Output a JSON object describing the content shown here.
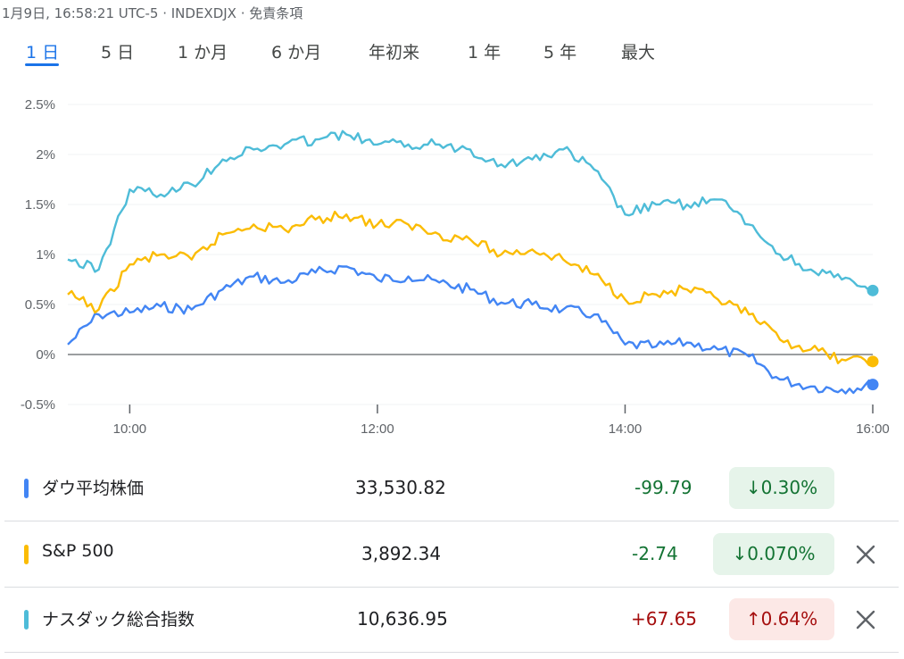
{
  "header": {
    "text": "1月9日, 16:58:21 UTC-5 · INDEXDJX · 免責条項"
  },
  "tabs": [
    {
      "label": "1 日",
      "active": true
    },
    {
      "label": "5 日",
      "active": false
    },
    {
      "label": "1 か月",
      "active": false
    },
    {
      "label": "6 か月",
      "active": false
    },
    {
      "label": "年初来",
      "active": false
    },
    {
      "label": "1 年",
      "active": false
    },
    {
      "label": "5 年",
      "active": false
    },
    {
      "label": "最大",
      "active": false
    }
  ],
  "chart_data": {
    "type": "line",
    "y_tick_labels": [
      "2.5%",
      "2%",
      "1.5%",
      "1%",
      "0.5%",
      "0%",
      "-0.5%"
    ],
    "y_ticks": [
      2.5,
      2.0,
      1.5,
      1.0,
      0.5,
      0.0,
      -0.5
    ],
    "ylim": [
      -0.5,
      2.5
    ],
    "x_tick_labels": [
      "10:00",
      "12:00",
      "14:00",
      "16:00"
    ],
    "x_ticks": [
      "10:00",
      "12:00",
      "14:00",
      "16:00"
    ],
    "xlim": [
      "09:30",
      "16:00"
    ],
    "grid": true,
    "series": [
      {
        "name": "ダウ平均株価",
        "color": "#4285f4",
        "x": [
          "09:30",
          "09:45",
          "10:00",
          "10:15",
          "10:30",
          "10:45",
          "11:00",
          "11:15",
          "11:30",
          "11:45",
          "12:00",
          "12:15",
          "12:30",
          "12:45",
          "13:00",
          "13:15",
          "13:30",
          "13:45",
          "14:00",
          "14:15",
          "14:30",
          "14:45",
          "15:00",
          "15:15",
          "15:30",
          "15:45",
          "16:00"
        ],
        "y": [
          0.1,
          0.4,
          0.42,
          0.48,
          0.45,
          0.65,
          0.78,
          0.72,
          0.82,
          0.88,
          0.75,
          0.78,
          0.72,
          0.65,
          0.52,
          0.5,
          0.45,
          0.4,
          0.1,
          0.08,
          0.12,
          0.05,
          -0.02,
          -0.25,
          -0.32,
          -0.35,
          -0.3
        ]
      },
      {
        "name": "S&P 500",
        "color": "#fbbc04",
        "x": [
          "09:30",
          "09:45",
          "10:00",
          "10:15",
          "10:30",
          "10:45",
          "11:00",
          "11:15",
          "11:30",
          "11:45",
          "12:00",
          "12:15",
          "12:30",
          "12:45",
          "13:00",
          "13:15",
          "13:30",
          "13:45",
          "14:00",
          "14:15",
          "14:30",
          "14:45",
          "15:00",
          "15:15",
          "15:30",
          "15:45",
          "16:00"
        ],
        "y": [
          0.6,
          0.45,
          0.9,
          1.0,
          0.95,
          1.2,
          1.3,
          1.25,
          1.35,
          1.4,
          1.3,
          1.3,
          1.2,
          1.15,
          1.0,
          1.05,
          0.95,
          0.8,
          0.55,
          0.6,
          0.65,
          0.55,
          0.4,
          0.15,
          0.05,
          -0.05,
          -0.07
        ]
      },
      {
        "name": "ナスダック総合指数",
        "color": "#4ebcd8",
        "x": [
          "09:30",
          "09:45",
          "10:00",
          "10:15",
          "10:30",
          "10:45",
          "11:00",
          "11:15",
          "11:30",
          "11:45",
          "12:00",
          "12:15",
          "12:30",
          "12:45",
          "13:00",
          "13:15",
          "13:30",
          "13:45",
          "14:00",
          "14:15",
          "14:30",
          "14:45",
          "15:00",
          "15:15",
          "15:30",
          "15:45",
          "16:00"
        ],
        "y": [
          0.95,
          0.85,
          1.65,
          1.6,
          1.7,
          1.95,
          2.05,
          2.1,
          2.15,
          2.2,
          2.1,
          2.1,
          2.1,
          2.05,
          1.9,
          1.95,
          2.05,
          1.85,
          1.4,
          1.5,
          1.5,
          1.55,
          1.3,
          1.0,
          0.85,
          0.75,
          0.64
        ]
      }
    ]
  },
  "rows": [
    {
      "name": "ダウ平均株価",
      "color": "#4285f4",
      "price": "33,530.82",
      "change": "-99.79",
      "percent": "↓0.30%",
      "direction": "neg",
      "removable": false
    },
    {
      "name": "S&P 500",
      "color": "#fbbc04",
      "price": "3,892.34",
      "change": "-2.74",
      "percent": "↓0.070%",
      "direction": "neg",
      "removable": true
    },
    {
      "name": "ナスダック総合指数",
      "color": "#4ebcd8",
      "price": "10,636.95",
      "change": "+67.65",
      "percent": "↑0.64%",
      "direction": "pos",
      "removable": true
    }
  ],
  "icons": {
    "remove": "close-icon"
  }
}
